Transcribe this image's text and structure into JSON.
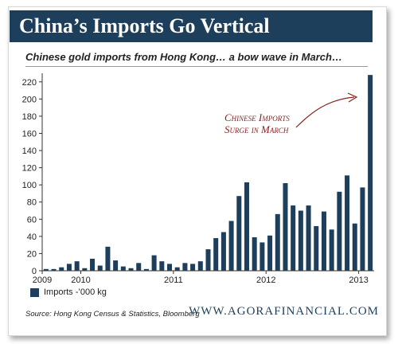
{
  "header": {
    "title": "China’s Imports Go Vertical",
    "subtitle": "Chinese gold imports from Hong Kong… a bow wave in March…"
  },
  "legend": {
    "label": "Imports -’000 kg"
  },
  "footer": {
    "source": "Source: Hong Kong Census & Statistics, Bloomberg",
    "brand": "WWW.AGORAFINANCIAL.COM"
  },
  "annotation": {
    "line1": "Chinese Imports",
    "line2": "Surge in March"
  },
  "colors": {
    "bar": "#1e3f5c",
    "annotation": "#8b1f1f",
    "title_bg": "#1e3f5c"
  },
  "chart_data": {
    "type": "bar",
    "title": "China’s Imports Go Vertical",
    "subtitle": "Chinese gold imports from Hong Kong… a bow wave in March…",
    "ylim": [
      0,
      230
    ],
    "yticks": [
      0,
      20,
      40,
      60,
      80,
      100,
      120,
      140,
      160,
      180,
      200,
      220
    ],
    "xtick_labels": [
      {
        "label": "2009",
        "index": 0
      },
      {
        "label": "2010",
        "index": 5
      },
      {
        "label": "2011",
        "index": 17
      },
      {
        "label": "2012",
        "index": 29
      },
      {
        "label": "2013",
        "index": 41
      }
    ],
    "grid": false,
    "series": [
      {
        "name": "Imports -’000 kg",
        "values": [
          2,
          2,
          4,
          8,
          11,
          3,
          14,
          6,
          28,
          12,
          5,
          3,
          9,
          2,
          18,
          11,
          8,
          4,
          9,
          8,
          11,
          25,
          38,
          45,
          58,
          87,
          103,
          39,
          33,
          41,
          66,
          102,
          76,
          70,
          76,
          52,
          69,
          48,
          92,
          111,
          55,
          97,
          228
        ]
      }
    ]
  }
}
